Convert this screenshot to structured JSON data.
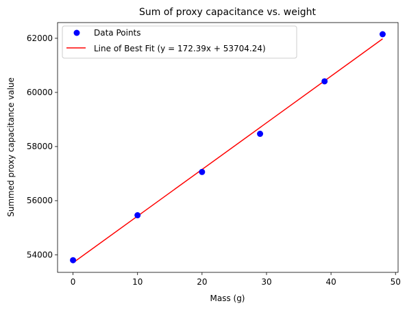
{
  "chart_data": {
    "type": "scatter",
    "title": "Sum of proxy capacitance vs. weight",
    "xlabel": "Mass (g)",
    "ylabel": "Summed proxy capacitance value",
    "xlim": [
      -2.4,
      50.4
    ],
    "ylim": [
      53350,
      62580
    ],
    "x_ticks": [
      0,
      10,
      20,
      30,
      40,
      50
    ],
    "y_ticks": [
      54000,
      56000,
      58000,
      60000,
      62000
    ],
    "grid": false,
    "legend_position": "top-left",
    "series": [
      {
        "name": "Data Points",
        "kind": "scatter",
        "color": "#0000ff",
        "x": [
          0,
          10,
          20,
          29,
          39,
          48
        ],
        "y": [
          53800,
          55460,
          57060,
          58470,
          60410,
          62150
        ]
      },
      {
        "name": "Line of Best Fit (y = 172.39x + 53704.24)",
        "kind": "line",
        "color": "#ff0000",
        "slope": 172.39,
        "intercept": 53704.24,
        "x": [
          0,
          48
        ]
      }
    ]
  }
}
